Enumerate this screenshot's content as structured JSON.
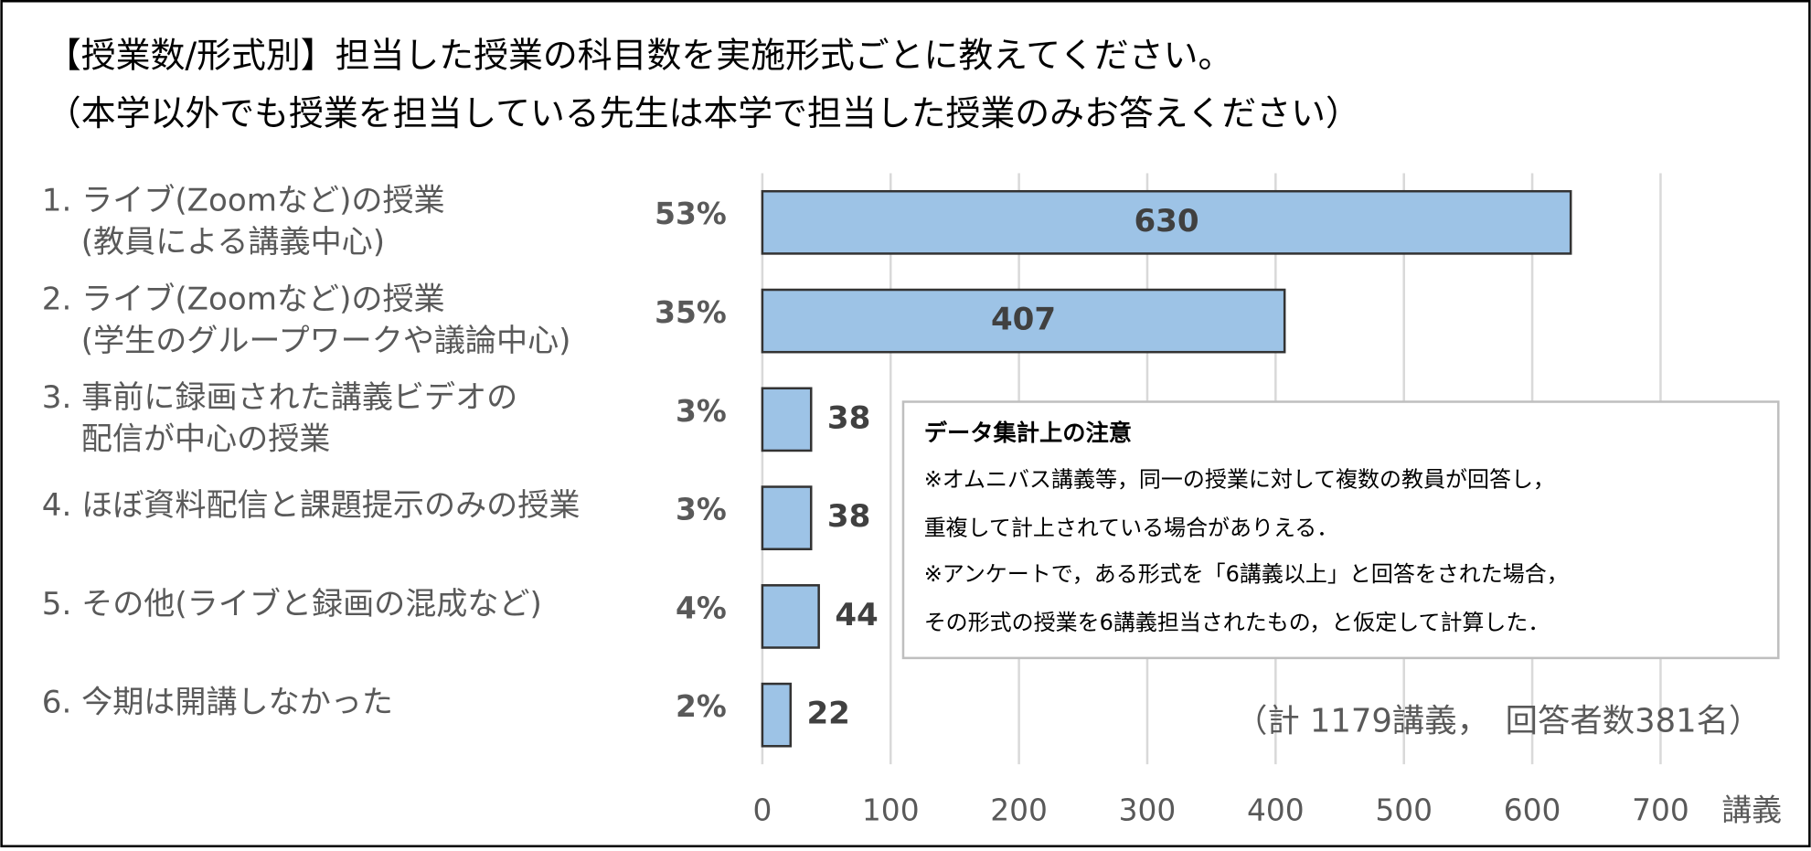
{
  "chart_data": {
    "type": "bar",
    "orientation": "horizontal",
    "title": "【授業数/形式別】担当した授業の科目数を実施形式ごとに教えてください。",
    "subtitle": "（本学以外でも授業を担当している先生は本学で担当した授業のみお答えください）",
    "categories": [
      "1. ライブ(Zoomなど)の授業\n(教員による講義中心)",
      "2. ライブ(Zoomなど)の授業\n(学生のグループワークや議論中心)",
      "3. 事前に録画された講義ビデオの\n配信が中心の授業",
      "4. ほぼ資料配信と課題提示のみの授業",
      "5. その他(ライブと録画の混成など)",
      "6. 今期は開講しなかった"
    ],
    "values": [
      630,
      407,
      38,
      38,
      44,
      22
    ],
    "share_labels": [
      "53%",
      "35%",
      "3%",
      "3%",
      "4%",
      "2%"
    ],
    "color": "#9dc3e6",
    "xlim": [
      0,
      790
    ],
    "xticks": [
      0,
      100,
      200,
      300,
      400,
      500,
      600,
      700
    ],
    "x_unit": "講義",
    "grid": true,
    "annotation": "（計 1179講義，　回答者数381名）",
    "note": {
      "title": "データ集計上の注意",
      "lines": [
        "※オムニバス講義等，同一の授業に対して複数の教員が回答し，",
        "重複して計上されている場合がありえる．",
        "※アンケートで，ある形式を「6講義以上」と回答をされた場合，",
        "その形式の授業を6講義担当されたもの，と仮定して計算した．"
      ]
    }
  }
}
